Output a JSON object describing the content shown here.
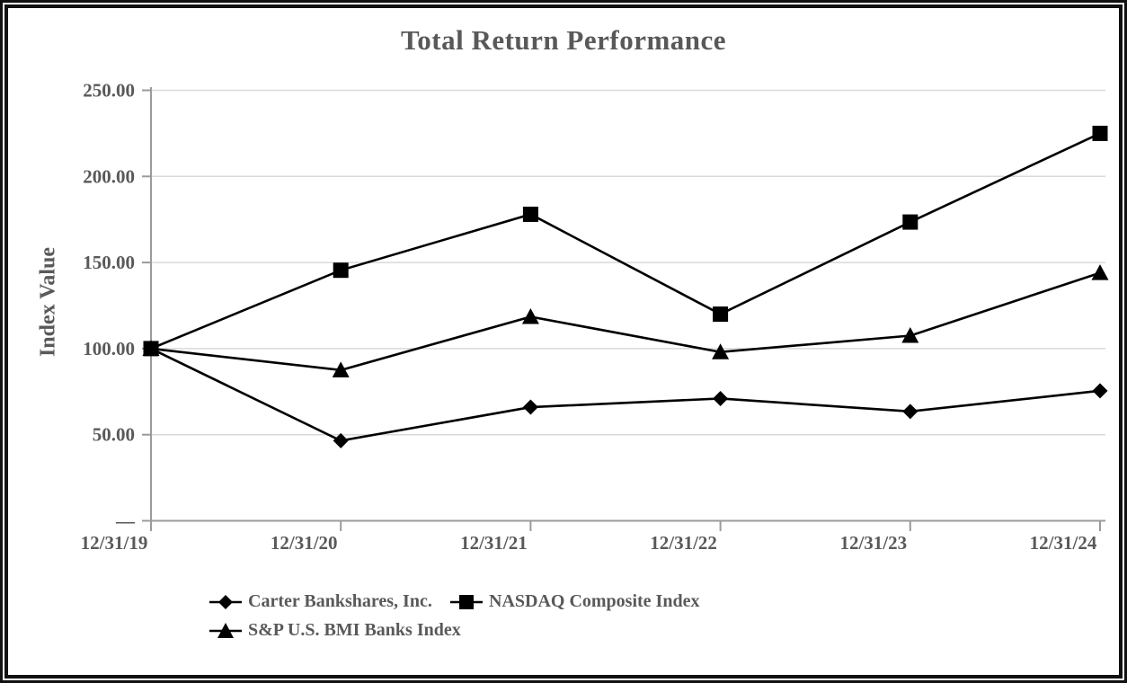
{
  "chart_data": {
    "type": "line",
    "title": "Total Return Performance",
    "ylabel": "Index Value",
    "xlabel": "",
    "categories": [
      "12/31/19",
      "12/31/20",
      "12/31/21",
      "12/31/22",
      "12/31/23",
      "12/31/24"
    ],
    "ylim": [
      0,
      250
    ],
    "yticks": [
      0,
      50,
      100,
      150,
      200,
      250
    ],
    "ytick_labels": [
      "—",
      "50.00",
      "100.00",
      "150.00",
      "200.00",
      "250.00"
    ],
    "grid": "horizontal",
    "legend_position": "bottom",
    "series": [
      {
        "name": "Carter Bankshares, Inc.",
        "marker": "diamond",
        "values": [
          100.0,
          46.5,
          66.0,
          71.0,
          63.5,
          75.5
        ]
      },
      {
        "name": "NASDAQ Composite Index",
        "marker": "square",
        "values": [
          100.0,
          145.5,
          178.0,
          120.0,
          173.5,
          225.0
        ]
      },
      {
        "name": "S&P U.S. BMI Banks Index",
        "marker": "triangle",
        "values": [
          100.0,
          87.5,
          118.5,
          98.0,
          107.5,
          144.0
        ]
      }
    ],
    "colors": {
      "series": "#000000",
      "grid": "#d9d9d9",
      "axis": "#9b9b9b",
      "text": "#595959",
      "background": "#ffffff",
      "frame": "#111111"
    }
  }
}
